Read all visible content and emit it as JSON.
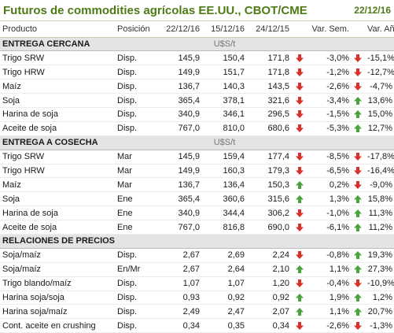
{
  "header": {
    "title": "Futuros de commodities agrícolas EE.UU., CBOT/CME",
    "date": "22/12/16"
  },
  "columns": [
    "Producto",
    "Posición",
    "22/12/16",
    "15/12/16",
    "24/12/15",
    "Var. Sem.",
    "Var. Año"
  ],
  "colors": {
    "accent": "#4d7a15",
    "up": "#4aa43c",
    "down": "#d9302a",
    "section_bg": "#e4e4e4"
  },
  "sections": [
    {
      "title": "ENTREGA CERCANA",
      "unit": "U$S/t",
      "rows": [
        {
          "product": "Trigo SRW",
          "position": "Disp.",
          "v1": "145,9",
          "v2": "150,4",
          "v3": "171,8",
          "a1": "down",
          "ws": "-3,0%",
          "a2": "down",
          "ya": "-15,1%"
        },
        {
          "product": "Trigo HRW",
          "position": "Disp.",
          "v1": "149,9",
          "v2": "151,7",
          "v3": "171,8",
          "a1": "down",
          "ws": "-1,2%",
          "a2": "down",
          "ya": "-12,7%"
        },
        {
          "product": "Maíz",
          "position": "Disp.",
          "v1": "136,7",
          "v2": "140,3",
          "v3": "143,5",
          "a1": "down",
          "ws": "-2,6%",
          "a2": "down",
          "ya": "-4,7%"
        },
        {
          "product": "Soja",
          "position": "Disp.",
          "v1": "365,4",
          "v2": "378,1",
          "v3": "321,6",
          "a1": "down",
          "ws": "-3,4%",
          "a2": "up",
          "ya": "13,6%"
        },
        {
          "product": "Harina de soja",
          "position": "Disp.",
          "v1": "340,9",
          "v2": "346,1",
          "v3": "296,5",
          "a1": "down",
          "ws": "-1,5%",
          "a2": "up",
          "ya": "15,0%"
        },
        {
          "product": "Aceite de soja",
          "position": "Disp.",
          "v1": "767,0",
          "v2": "810,0",
          "v3": "680,6",
          "a1": "down",
          "ws": "-5,3%",
          "a2": "up",
          "ya": "12,7%"
        }
      ]
    },
    {
      "title": "ENTREGA A COSECHA",
      "unit": "U$S/t",
      "rows": [
        {
          "product": "Trigo SRW",
          "position": "Mar",
          "v1": "145,9",
          "v2": "159,4",
          "v3": "177,4",
          "a1": "down",
          "ws": "-8,5%",
          "a2": "down",
          "ya": "-17,8%"
        },
        {
          "product": "Trigo HRW",
          "position": "Mar",
          "v1": "149,9",
          "v2": "160,3",
          "v3": "179,3",
          "a1": "down",
          "ws": "-6,5%",
          "a2": "down",
          "ya": "-16,4%"
        },
        {
          "product": "Maíz",
          "position": "Mar",
          "v1": "136,7",
          "v2": "136,4",
          "v3": "150,3",
          "a1": "up",
          "ws": "0,2%",
          "a2": "down",
          "ya": "-9,0%"
        },
        {
          "product": "Soja",
          "position": "Ene",
          "v1": "365,4",
          "v2": "360,6",
          "v3": "315,6",
          "a1": "up",
          "ws": "1,3%",
          "a2": "up",
          "ya": "15,8%"
        },
        {
          "product": "Harina de soja",
          "position": "Ene",
          "v1": "340,9",
          "v2": "344,4",
          "v3": "306,2",
          "a1": "down",
          "ws": "-1,0%",
          "a2": "up",
          "ya": "11,3%"
        },
        {
          "product": "Aceite de soja",
          "position": "Ene",
          "v1": "767,0",
          "v2": "816,8",
          "v3": "690,0",
          "a1": "down",
          "ws": "-6,1%",
          "a2": "up",
          "ya": "11,2%"
        }
      ]
    },
    {
      "title": "RELACIONES DE PRECIOS",
      "unit": "",
      "rows": [
        {
          "product": "Soja/maíz",
          "position": "Disp.",
          "v1": "2,67",
          "v2": "2,69",
          "v3": "2,24",
          "a1": "down",
          "ws": "-0,8%",
          "a2": "up",
          "ya": "19,3%"
        },
        {
          "product": "Soja/maíz",
          "position": "En/Mr",
          "v1": "2,67",
          "v2": "2,64",
          "v3": "2,10",
          "a1": "up",
          "ws": "1,1%",
          "a2": "up",
          "ya": "27,3%"
        },
        {
          "product": "Trigo blando/maíz",
          "position": "Disp.",
          "v1": "1,07",
          "v2": "1,07",
          "v3": "1,20",
          "a1": "down",
          "ws": "-0,4%",
          "a2": "down",
          "ya": "-10,9%"
        },
        {
          "product": "Harina soja/soja",
          "position": "Disp.",
          "v1": "0,93",
          "v2": "0,92",
          "v3": "0,92",
          "a1": "up",
          "ws": "1,9%",
          "a2": "up",
          "ya": "1,2%"
        },
        {
          "product": "Harina soja/maíz",
          "position": "Disp.",
          "v1": "2,49",
          "v2": "2,47",
          "v3": "2,07",
          "a1": "up",
          "ws": "1,1%",
          "a2": "up",
          "ya": "20,7%"
        },
        {
          "product": "Cont. aceite en crushing",
          "position": "Disp.",
          "v1": "0,34",
          "v2": "0,35",
          "v3": "0,34",
          "a1": "down",
          "ws": "-2,6%",
          "a2": "down",
          "ya": "-1,3%"
        }
      ]
    }
  ]
}
